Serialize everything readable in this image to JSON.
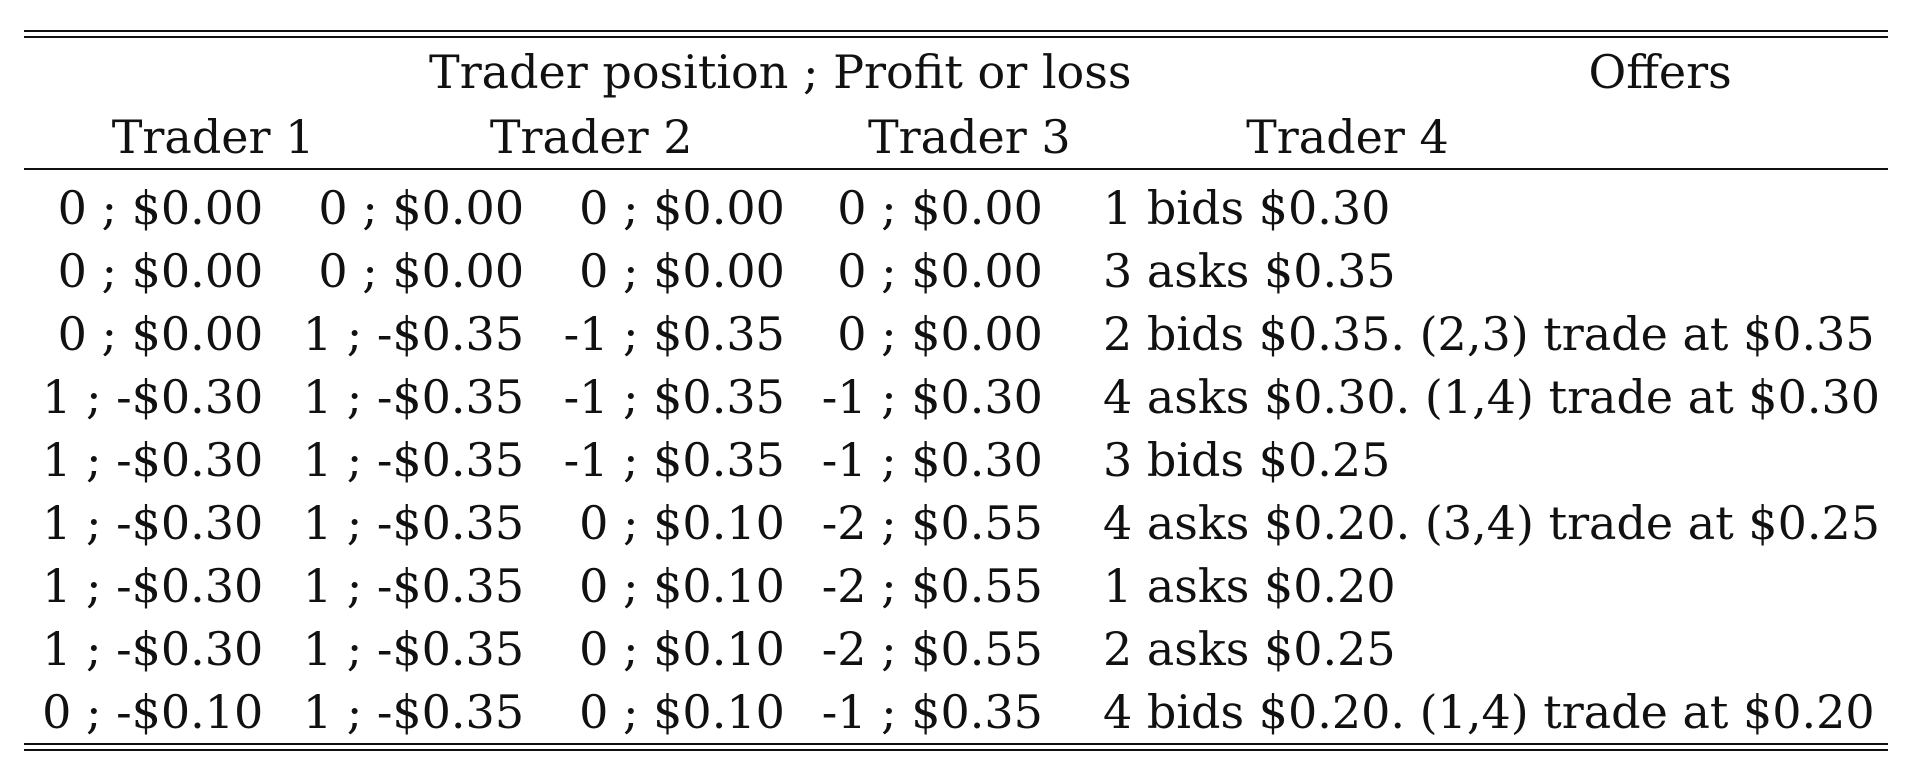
{
  "table": {
    "header": {
      "group_label": "Trader position ; Profit or loss",
      "offers_label": "Offers",
      "columns": [
        "Trader 1",
        "Trader 2",
        "Trader 3",
        "Trader 4"
      ]
    },
    "rows": [
      {
        "t1": "0 ; $0.00",
        "t2": "0 ; $0.00",
        "t3": "0 ; $0.00",
        "t4": "0 ; $0.00",
        "offer": "1 bids $0.30"
      },
      {
        "t1": "0 ; $0.00",
        "t2": "0 ; $0.00",
        "t3": "0 ; $0.00",
        "t4": "0 ; $0.00",
        "offer": "3 asks $0.35"
      },
      {
        "t1": "0 ; $0.00",
        "t2": "1 ; -$0.35",
        "t3": "-1 ; $0.35",
        "t4": "0 ; $0.00",
        "offer": "2 bids $0.35. (2,3) trade at $0.35"
      },
      {
        "t1": "1 ; -$0.30",
        "t2": "1 ; -$0.35",
        "t3": "-1 ; $0.35",
        "t4": "-1 ; $0.30",
        "offer": "4 asks $0.30. (1,4) trade at $0.30"
      },
      {
        "t1": "1 ; -$0.30",
        "t2": "1 ; -$0.35",
        "t3": "-1 ; $0.35",
        "t4": "-1 ; $0.30",
        "offer": "3 bids $0.25"
      },
      {
        "t1": "1 ; -$0.30",
        "t2": "1 ; -$0.35",
        "t3": "0 ; $0.10",
        "t4": "-2 ; $0.55",
        "offer": "4 asks $0.20. (3,4) trade at $0.25"
      },
      {
        "t1": "1 ; -$0.30",
        "t2": "1 ; -$0.35",
        "t3": "0 ; $0.10",
        "t4": "-2 ; $0.55",
        "offer": "1 asks $0.20"
      },
      {
        "t1": "1 ; -$0.30",
        "t2": "1 ; -$0.35",
        "t3": "0 ; $0.10",
        "t4": "-2 ; $0.55",
        "offer": "2 asks $0.25"
      },
      {
        "t1": "0 ; -$0.10",
        "t2": "1 ; -$0.35",
        "t3": "0 ; $0.10",
        "t4": "-1 ; $0.35",
        "offer": "4 bids $0.20. (1,4) trade at $0.20"
      }
    ]
  }
}
